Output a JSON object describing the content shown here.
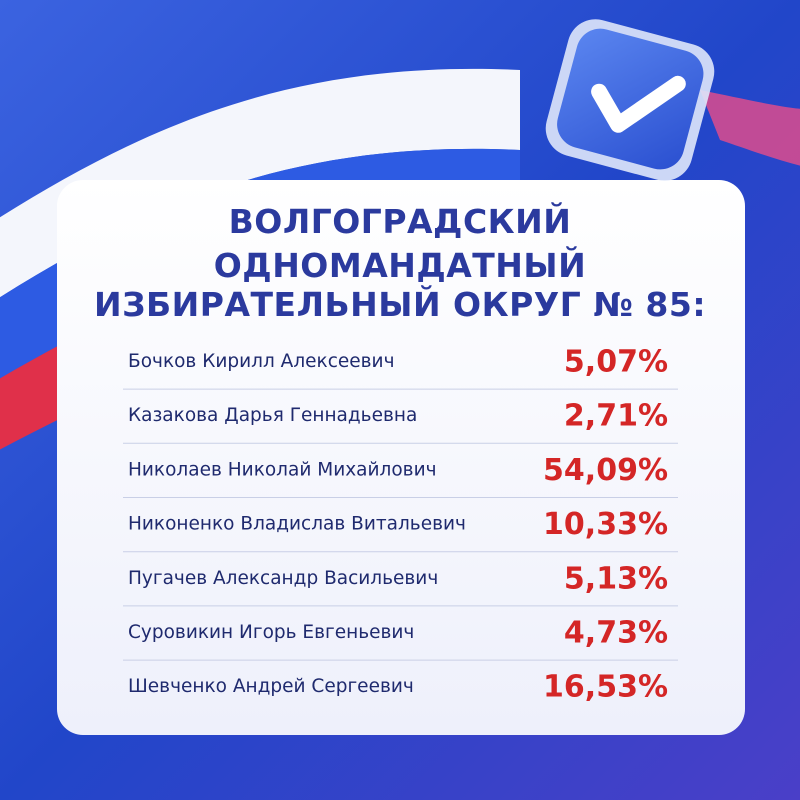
{
  "title_lines": [
    "ВОЛГОГРАДСКИЙ",
    "ОДНОМАНДАТНЫЙ",
    "ИЗБИРАТЕЛЬНЫЙ ОКРУГ № 85:"
  ],
  "table": {
    "rows": [
      [
        "Бочков Кирилл Алексеевич",
        "5,07%"
      ],
      [
        "Казакова Дарья Геннадьевна",
        "2,71%"
      ],
      [
        "Николаев Николай Михайлович",
        "54,09%"
      ],
      [
        "Никоненко Владислав Витальевич",
        "10,33%"
      ],
      [
        "Пугачев Александр Васильевич",
        "5,13%"
      ],
      [
        "Суровикин Игорь Евгеньевич",
        "4,73%"
      ],
      [
        "Шевченко Андрей Сергеевич",
        "16,53%"
      ]
    ]
  }
}
